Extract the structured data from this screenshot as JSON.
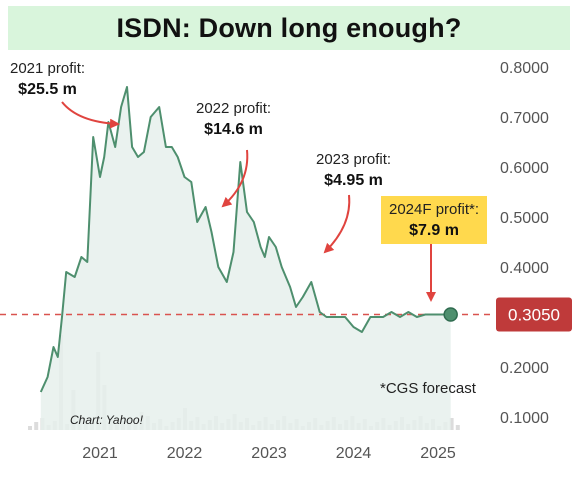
{
  "title": "ISDN: Down long enough?",
  "annotations": [
    {
      "label": "2021 profit:",
      "value": "$25.5 m"
    },
    {
      "label": "2022 profit:",
      "value": "$14.6 m"
    },
    {
      "label": "2023 profit:",
      "value": "$4.95 m"
    },
    {
      "label": "2024F profit*:",
      "value": "$7.9 m"
    }
  ],
  "footnote": "*CGS forecast",
  "credit": "Chart: Yahoo!",
  "current_price": "0.3050",
  "colors": {
    "line": "#4e8f6e",
    "area": "#e6f0ec",
    "reference": "#d9534f",
    "price_badge": "#bf3a3a",
    "arrow": "#e0443f",
    "highlight": "#ffd94d",
    "volume": "#dcdcdc"
  },
  "chart_data": {
    "type": "area",
    "title": "ISDN: Down long enough?",
    "xlabel": "",
    "ylabel": "",
    "x_ticks": [
      "2021",
      "2022",
      "2023",
      "2024",
      "2025"
    ],
    "y_ticks": [
      "0.8000",
      "0.7000",
      "0.6000",
      "0.5000",
      "0.4000",
      "0.3050",
      "0.2000",
      "0.1000"
    ],
    "ylim": [
      0.05,
      0.8
    ],
    "reference_line": 0.305,
    "series": [
      {
        "x": [
          2020.3,
          2020.38,
          2020.45,
          2020.5,
          2020.55,
          2020.6,
          2020.7,
          2020.78,
          2020.85,
          2020.92,
          2021.0,
          2021.05,
          2021.1,
          2021.18,
          2021.25,
          2021.32,
          2021.38,
          2021.45,
          2021.52,
          2021.6,
          2021.7,
          2021.78,
          2021.85,
          2021.92,
          2022.0,
          2022.08,
          2022.15,
          2022.25,
          2022.32,
          2022.4,
          2022.5,
          2022.58,
          2022.66,
          2022.74,
          2022.82,
          2022.9,
          2022.95,
          2023.0,
          2023.08,
          2023.15,
          2023.25,
          2023.32,
          2023.4,
          2023.5,
          2023.6,
          2023.68,
          2023.75,
          2023.82,
          2023.9,
          2024.0,
          2024.1,
          2024.2,
          2024.35,
          2024.45,
          2024.55,
          2024.65,
          2024.75,
          2024.85,
          2024.95,
          2025.05,
          2025.15
        ],
        "values": [
          0.15,
          0.18,
          0.24,
          0.22,
          0.3,
          0.39,
          0.38,
          0.42,
          0.41,
          0.66,
          0.58,
          0.62,
          0.69,
          0.64,
          0.72,
          0.76,
          0.64,
          0.62,
          0.63,
          0.7,
          0.72,
          0.64,
          0.64,
          0.62,
          0.58,
          0.57,
          0.49,
          0.52,
          0.47,
          0.4,
          0.37,
          0.43,
          0.61,
          0.51,
          0.49,
          0.44,
          0.42,
          0.46,
          0.44,
          0.4,
          0.36,
          0.32,
          0.34,
          0.37,
          0.31,
          0.3,
          0.3,
          0.3,
          0.3,
          0.28,
          0.27,
          0.3,
          0.3,
          0.31,
          0.3,
          0.31,
          0.3,
          0.305,
          0.305,
          0.305,
          0.305
        ]
      }
    ]
  }
}
